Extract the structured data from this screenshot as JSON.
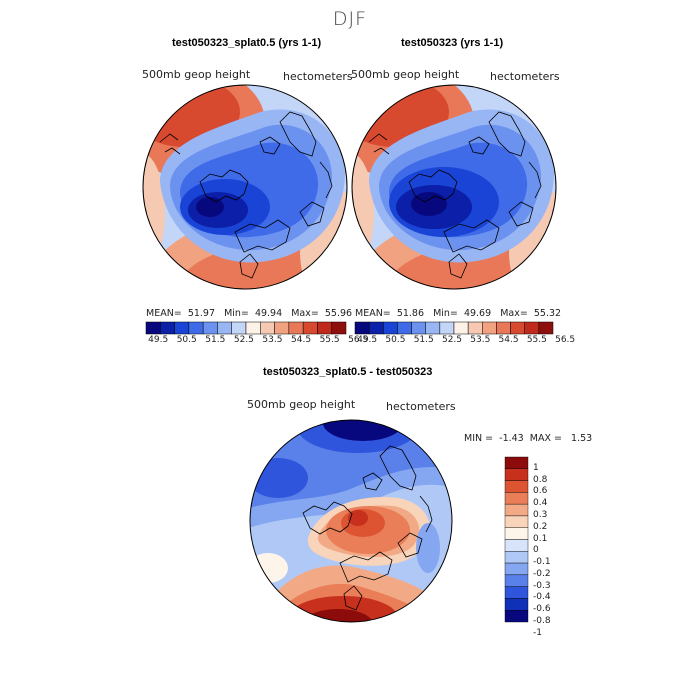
{
  "title": "DJF",
  "colors": {
    "height_scale": [
      "#08087e",
      "#0b1fa8",
      "#1a44d6",
      "#3f6ae8",
      "#6c92ef",
      "#98b5f4",
      "#c4d6f8",
      "#fcf2e8",
      "#f6c9b2",
      "#f0a281",
      "#e87857",
      "#d84a30",
      "#bf2a1c",
      "#8f0f0c"
    ],
    "diff_scale": [
      "#08087e",
      "#1030b8",
      "#2e55dc",
      "#5a80ea",
      "#85a6f0",
      "#b0c8f5",
      "#d8e4fa",
      "#fdf4ea",
      "#f8d4bb",
      "#f2aa86",
      "#ea7e58",
      "#dc5432",
      "#c6301c",
      "#8c0c0c"
    ],
    "continent_outline": "#000000"
  },
  "panels": [
    {
      "title": "test050323_splat0.5 (yrs 1-1)",
      "field_label": "500mb  geop height",
      "units_label": "hectometers",
      "stats": {
        "mean_label": "MEAN=",
        "mean": "51.97",
        "min_label": "Min=",
        "min": "49.94",
        "max_label": "Max=",
        "max": "55.96"
      },
      "colorbar_ticks": [
        "49.5",
        "50.5",
        "51.5",
        "52.5",
        "53.5",
        "54.5",
        "55.5",
        "56.5"
      ]
    },
    {
      "title": "test050323 (yrs 1-1)",
      "field_label": "500mb  geop height",
      "units_label": "hectometers",
      "stats": {
        "mean_label": "MEAN=",
        "mean": "51.86",
        "min_label": "Min=",
        "min": "49.69",
        "max_label": "Max=",
        "max": "55.32"
      },
      "colorbar_ticks": [
        "49.5",
        "50.5",
        "51.5",
        "52.5",
        "53.5",
        "54.5",
        "55.5",
        "56.5"
      ]
    }
  ],
  "diff_panel": {
    "title": "test050323_splat0.5 - test050323",
    "field_label": "500mb  geop height",
    "units_label": "hectometers",
    "stats": {
      "min_label": "MIN =",
      "min": "-1.43",
      "max_label": "MAX =",
      "max": "1.53"
    },
    "colorbar_ticks": [
      "1",
      "0.8",
      "0.6",
      "0.4",
      "0.3",
      "0.2",
      "0.1",
      "0",
      "-0.1",
      "-0.2",
      "-0.3",
      "-0.4",
      "-0.6",
      "-0.8",
      "-1"
    ]
  },
  "chart_data": [
    {
      "type": "heatmap",
      "projection": "north polar stereographic",
      "title": "test050323_splat0.5 (yrs 1-1)",
      "variable": "500mb  geop height",
      "units": "hectometers",
      "mean": 51.97,
      "min": 49.94,
      "max": 55.96,
      "contour_levels": [
        49.5,
        50.5,
        51.5,
        52.5,
        53.5,
        54.5,
        55.5,
        56.5
      ]
    },
    {
      "type": "heatmap",
      "projection": "north polar stereographic",
      "title": "test050323 (yrs 1-1)",
      "variable": "500mb  geop height",
      "units": "hectometers",
      "mean": 51.86,
      "min": 49.69,
      "max": 55.32,
      "contour_levels": [
        49.5,
        50.5,
        51.5,
        52.5,
        53.5,
        54.5,
        55.5,
        56.5
      ]
    },
    {
      "type": "heatmap",
      "projection": "north polar stereographic",
      "title": "test050323_splat0.5 - test050323",
      "variable": "500mb  geop height",
      "units": "hectometers",
      "min": -1.43,
      "max": 1.53,
      "contour_levels": [
        -1,
        -0.8,
        -0.6,
        -0.4,
        -0.3,
        -0.2,
        -0.1,
        0,
        0.1,
        0.2,
        0.3,
        0.4,
        0.6,
        0.8,
        1
      ]
    }
  ]
}
